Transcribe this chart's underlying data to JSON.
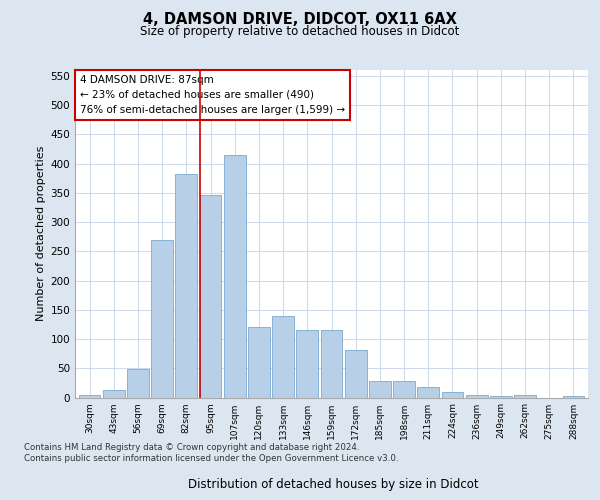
{
  "title1": "4, DAMSON DRIVE, DIDCOT, OX11 6AX",
  "title2": "Size of property relative to detached houses in Didcot",
  "xlabel": "Distribution of detached houses by size in Didcot",
  "ylabel": "Number of detached properties",
  "categories": [
    "30sqm",
    "43sqm",
    "56sqm",
    "69sqm",
    "82sqm",
    "95sqm",
    "107sqm",
    "120sqm",
    "133sqm",
    "146sqm",
    "159sqm",
    "172sqm",
    "185sqm",
    "198sqm",
    "211sqm",
    "224sqm",
    "236sqm",
    "249sqm",
    "262sqm",
    "275sqm",
    "288sqm"
  ],
  "values": [
    5,
    12,
    48,
    270,
    382,
    347,
    415,
    120,
    140,
    115,
    115,
    82,
    28,
    28,
    18,
    10,
    5,
    3,
    5,
    0,
    3
  ],
  "bar_color": "#b8cfe8",
  "bar_edge_color": "#7aaad0",
  "vline_x": 4.55,
  "vline_color": "#cc0000",
  "annotation_text": "4 DAMSON DRIVE: 87sqm\n← 23% of detached houses are smaller (490)\n76% of semi-detached houses are larger (1,599) →",
  "annotation_box_color": "#ffffff",
  "annotation_box_edge": "#cc0000",
  "ylim": [
    0,
    560
  ],
  "yticks": [
    0,
    50,
    100,
    150,
    200,
    250,
    300,
    350,
    400,
    450,
    500,
    550
  ],
  "bg_color": "#dce6f0",
  "plot_bg": "#ffffff",
  "footer1": "Contains HM Land Registry data © Crown copyright and database right 2024.",
  "footer2": "Contains public sector information licensed under the Open Government Licence v3.0."
}
